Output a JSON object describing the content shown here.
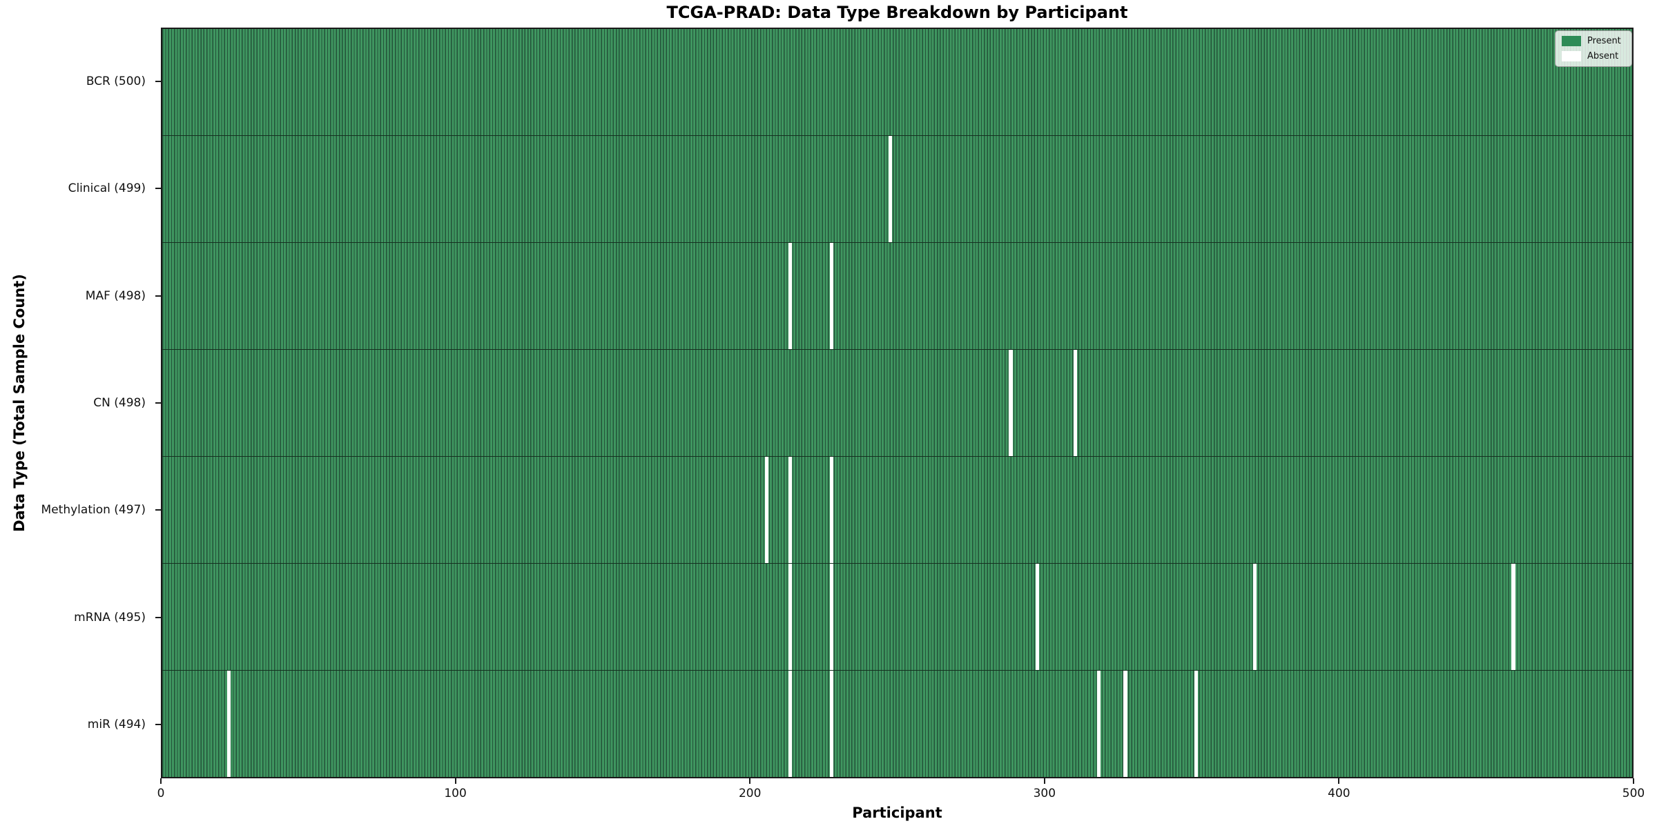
{
  "title": "TCGA-PRAD: Data Type Breakdown by Participant",
  "chart_data": {
    "type": "heatmap",
    "title": "TCGA-PRAD: Data Type Breakdown by Participant",
    "xlabel": "Participant",
    "ylabel": "Data Type (Total Sample Count)",
    "xlim": [
      0,
      500
    ],
    "x_ticks": [
      0,
      100,
      200,
      300,
      400,
      500
    ],
    "n_participants": 500,
    "grid": false,
    "legend_position": "upper right",
    "legend": [
      {
        "label": "Present",
        "color": "#2e8b57"
      },
      {
        "label": "Absent",
        "color": "#ffffff"
      }
    ],
    "rows": [
      {
        "label": "BCR (500)",
        "data_type": "BCR",
        "present_count": 500,
        "absent_participants": []
      },
      {
        "label": "Clinical (499)",
        "data_type": "Clinical",
        "present_count": 499,
        "absent_participants": [
          247
        ]
      },
      {
        "label": "MAF (498)",
        "data_type": "MAF",
        "present_count": 498,
        "absent_participants": [
          213,
          227
        ]
      },
      {
        "label": "CN (498)",
        "data_type": "CN",
        "present_count": 498,
        "absent_participants": [
          288,
          310
        ]
      },
      {
        "label": "Methylation (497)",
        "data_type": "Methylation",
        "present_count": 497,
        "absent_participants": [
          205,
          213,
          227
        ]
      },
      {
        "label": "mRNA (495)",
        "data_type": "mRNA",
        "present_count": 495,
        "absent_participants": [
          213,
          227,
          297,
          371,
          459
        ]
      },
      {
        "label": "miR (494)",
        "data_type": "miR",
        "present_count": 494,
        "absent_participants": [
          22,
          213,
          227,
          318,
          327,
          351
        ]
      }
    ],
    "colors": {
      "present_fill": "#3f9660",
      "cell_edge": "#235239",
      "absent": "#ffffff",
      "row_separator": "#14301f",
      "legend_present_swatch": "#2e8b57"
    }
  }
}
